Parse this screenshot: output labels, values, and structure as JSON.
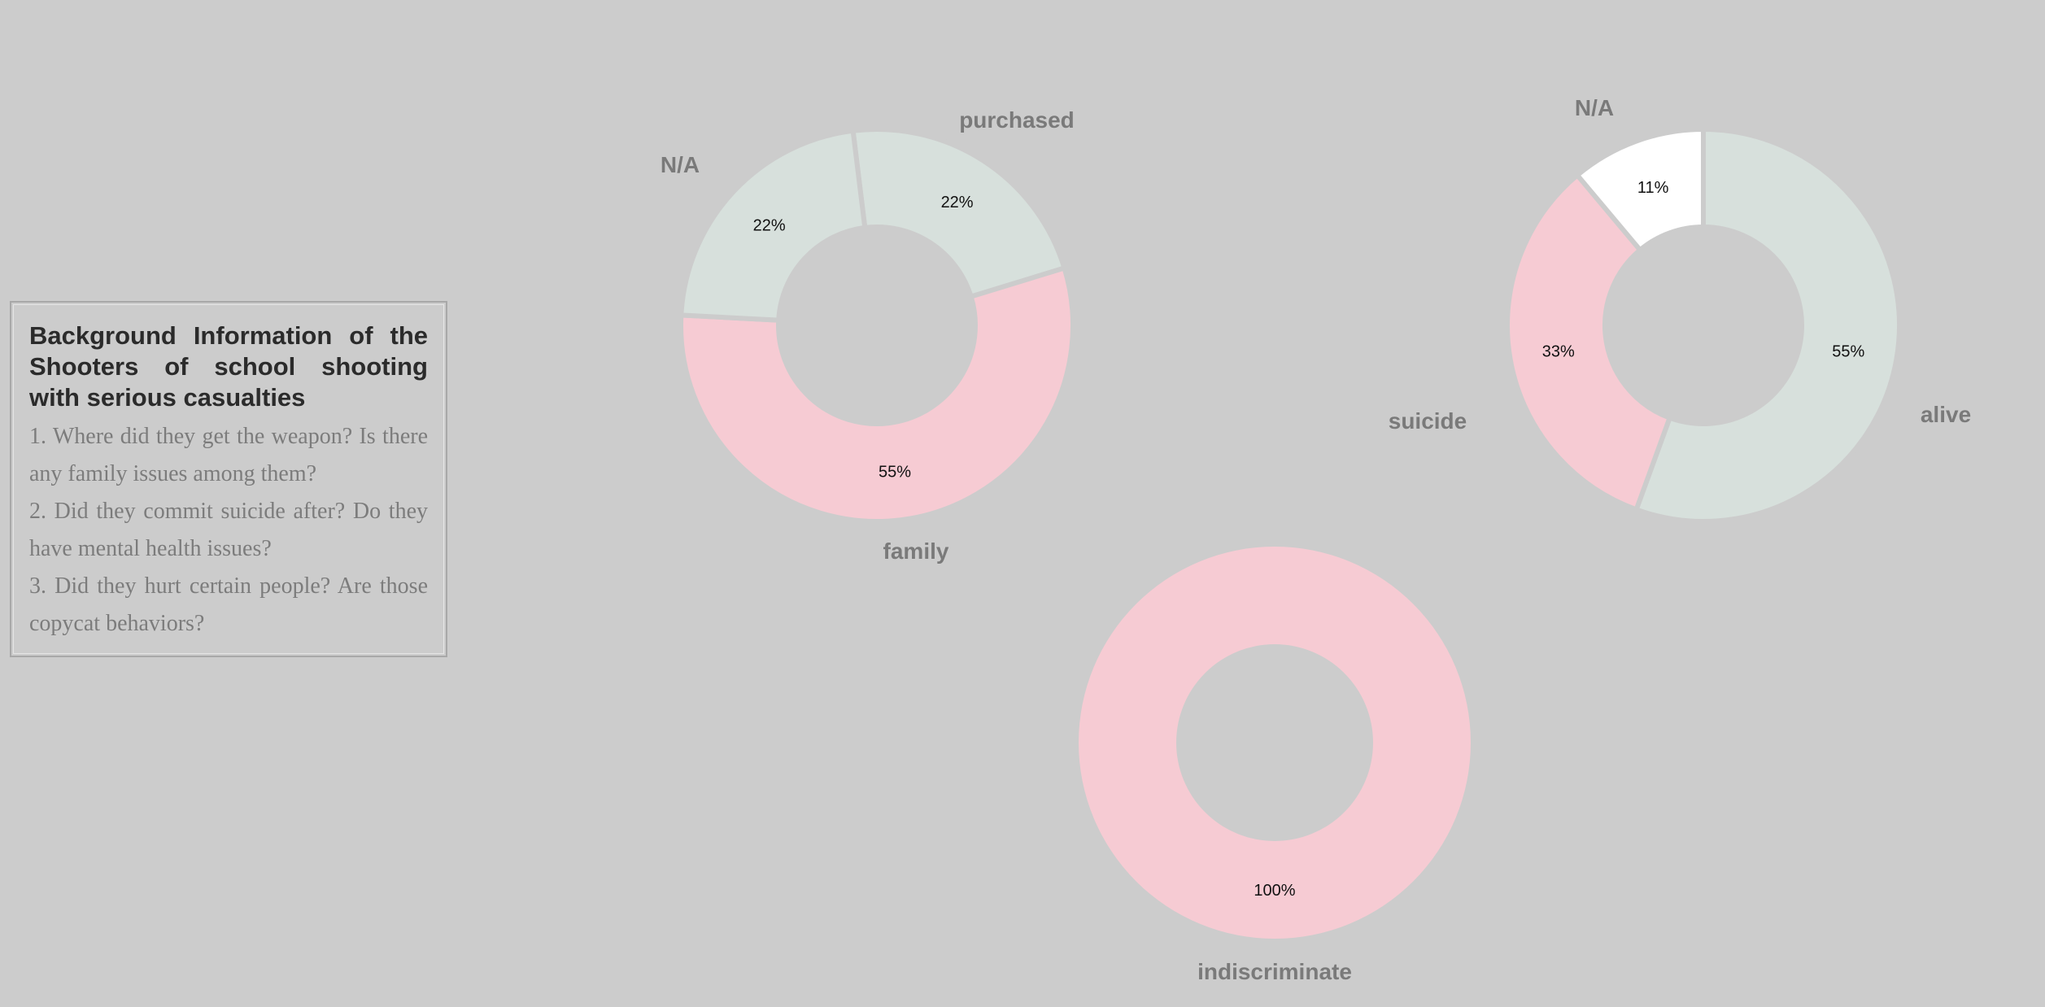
{
  "info": {
    "title": "Background Information of the Shooters of school shooting with serious casualties",
    "questions": [
      "1. Where did they get the weapon? Is there any family issues among them?",
      "2. Did they commit suicide after? Do they have mental health issues?",
      "3. Did they hurt certain people? Are those copycat behaviors?"
    ]
  },
  "colors": {
    "background": "#cccccc",
    "pink": "#f6cbd3",
    "light_gray": "#d7e0dc",
    "white": "#ffffff",
    "category_label": "#7a7a7a",
    "percent_label": "#111111"
  },
  "chart_data": [
    {
      "type": "pie",
      "variant": "donut",
      "slices": [
        {
          "label": "purchased",
          "value": 22,
          "pct_label": "22%",
          "color": "#d7e0dc"
        },
        {
          "label": "family",
          "value": 55,
          "pct_label": "55%",
          "color": "#f6cbd3"
        },
        {
          "label": "N/A",
          "value": 22,
          "pct_label": "22%",
          "color": "#d7e0dc"
        }
      ]
    },
    {
      "type": "pie",
      "variant": "donut",
      "slices": [
        {
          "label": "alive",
          "value": 55,
          "pct_label": "55%",
          "color": "#d7e0dc"
        },
        {
          "label": "suicide",
          "value": 33,
          "pct_label": "33%",
          "color": "#f6cbd3"
        },
        {
          "label": "N/A",
          "value": 11,
          "pct_label": "11%",
          "color": "#ffffff"
        }
      ]
    },
    {
      "type": "pie",
      "variant": "donut",
      "slices": [
        {
          "label": "indiscriminate",
          "value": 100,
          "pct_label": "100%",
          "color": "#f6cbd3"
        }
      ]
    }
  ]
}
